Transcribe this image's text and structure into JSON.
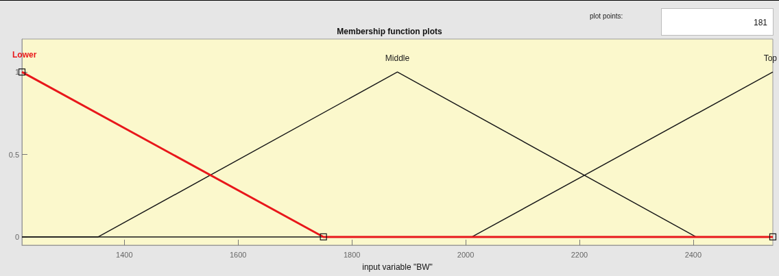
{
  "chart_data": {
    "type": "line",
    "title": "Membership function plots",
    "xlabel": "input variable \"BW\"",
    "annotations": [
      "plot points:",
      "181"
    ],
    "xlim": [
      1220,
      2540
    ],
    "xticks": [
      1400,
      1600,
      1800,
      2000,
      2200,
      2400
    ],
    "ylim": [
      -0.05,
      1.2
    ],
    "yticks": [
      0,
      0.5,
      1
    ],
    "series": [
      {
        "name": "Middle",
        "color": "#1a1a1a",
        "x": [
          1220,
          1354,
          1880,
          2405,
          2540
        ],
        "values": [
          0,
          0,
          1,
          0,
          0
        ],
        "marker": "none"
      },
      {
        "name": "Top",
        "color": "#1a1a1a",
        "x": [
          1220,
          2011,
          2540
        ],
        "values": [
          0,
          0,
          1
        ],
        "marker": "none"
      },
      {
        "name": "Lower",
        "color": "#e8171b",
        "x": [
          1220,
          1750,
          2540
        ],
        "values": [
          1,
          0,
          0
        ],
        "marker": "square"
      }
    ],
    "grid": false,
    "legend": false
  }
}
